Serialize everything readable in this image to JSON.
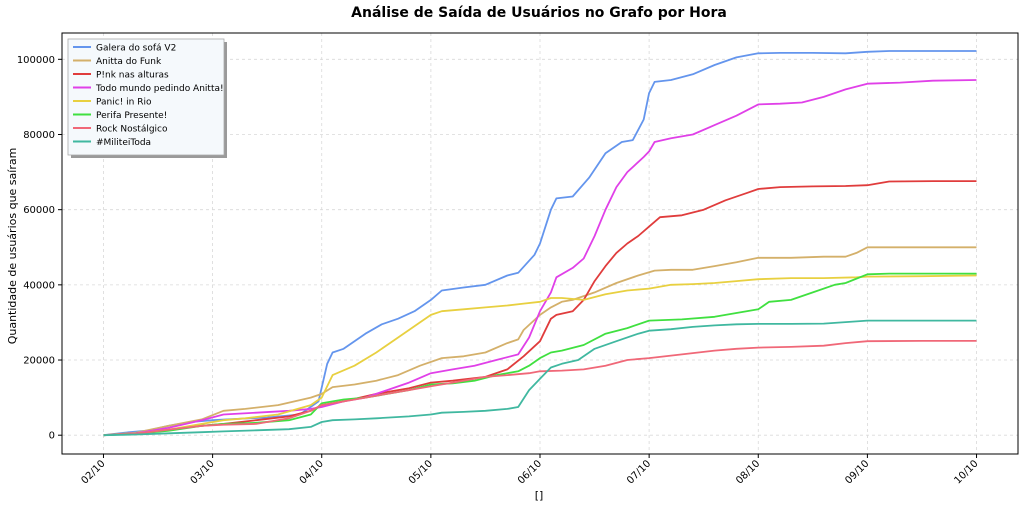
{
  "chart_data": {
    "type": "line",
    "title": "Análise de Saída de Usuários no Grafo por Hora",
    "xlabel": "[]",
    "ylabel": "Quantidade de usuários que saíram",
    "x_ticks": [
      "02/10",
      "03/10",
      "04/10",
      "05/10",
      "06/10",
      "07/10",
      "08/10",
      "09/10",
      "10/10"
    ],
    "xlim": [
      -0.38,
      8.38
    ],
    "ylim": [
      -5000,
      107000
    ],
    "y_ticks": [
      0,
      20000,
      40000,
      60000,
      80000,
      100000
    ],
    "grid": true,
    "legend_position": "top-left",
    "series": [
      {
        "name": "Galera do sofá V2",
        "color": "#6495ED",
        "x": [
          0,
          0.2,
          0.4,
          0.6,
          0.8,
          1.0,
          1.2,
          1.5,
          1.8,
          1.97,
          2.05,
          2.1,
          2.2,
          2.3,
          2.4,
          2.55,
          2.7,
          2.85,
          3.0,
          3.1,
          3.3,
          3.5,
          3.7,
          3.8,
          3.95,
          4.0,
          4.1,
          4.15,
          4.3,
          4.45,
          4.6,
          4.75,
          4.85,
          4.95,
          5.0,
          5.05,
          5.2,
          5.4,
          5.6,
          5.8,
          6.0,
          6.2,
          6.5,
          6.8,
          7.0,
          7.2,
          7.5,
          7.8,
          8.0
        ],
        "y": [
          0,
          700,
          1200,
          2500,
          3500,
          4000,
          4300,
          4700,
          5500,
          9000,
          19000,
          22000,
          23000,
          25000,
          27000,
          29500,
          31000,
          33000,
          36000,
          38500,
          39300,
          40000,
          42500,
          43200,
          48000,
          51000,
          60000,
          63000,
          63500,
          68500,
          75000,
          78000,
          78500,
          84000,
          91000,
          94000,
          94500,
          96000,
          98500,
          100500,
          101600,
          101700,
          101700,
          101600,
          102000,
          102200,
          102200,
          102200,
          102200
        ]
      },
      {
        "name": "Anitta do Funk",
        "color": "#D4B06A",
        "x": [
          0,
          0.3,
          0.6,
          0.9,
          1.1,
          1.3,
          1.6,
          1.9,
          2.0,
          2.1,
          2.3,
          2.5,
          2.7,
          2.9,
          3.1,
          3.3,
          3.5,
          3.7,
          3.8,
          3.85,
          4.0,
          4.1,
          4.2,
          4.3,
          4.5,
          4.7,
          4.9,
          5.05,
          5.2,
          5.4,
          5.6,
          5.8,
          6.0,
          6.3,
          6.6,
          6.8,
          6.9,
          7.0,
          7.5,
          8.0
        ],
        "y": [
          0,
          700,
          2500,
          4200,
          6500,
          7000,
          8000,
          10000,
          11000,
          12800,
          13500,
          14500,
          16000,
          18500,
          20500,
          21000,
          22000,
          24500,
          25500,
          28000,
          32000,
          34000,
          35500,
          36000,
          38000,
          40500,
          42500,
          43800,
          44000,
          44000,
          45000,
          46000,
          47200,
          47200,
          47500,
          47500,
          48500,
          50000,
          50000,
          50000
        ]
      },
      {
        "name": "P!nk nas alturas",
        "color": "#E03C3C",
        "x": [
          0,
          0.3,
          0.6,
          0.9,
          1.1,
          1.4,
          1.7,
          1.9,
          2.0,
          2.2,
          2.5,
          2.8,
          3.0,
          3.2,
          3.5,
          3.7,
          3.85,
          4.0,
          4.1,
          4.15,
          4.3,
          4.4,
          4.5,
          4.6,
          4.7,
          4.8,
          4.9,
          5.0,
          5.1,
          5.3,
          5.5,
          5.7,
          5.9,
          6.0,
          6.2,
          6.5,
          6.8,
          7.0,
          7.2,
          7.6,
          8.0
        ],
        "y": [
          0,
          500,
          1500,
          2500,
          3000,
          4000,
          5000,
          6500,
          8000,
          9000,
          11000,
          12500,
          14000,
          14500,
          15500,
          17500,
          21000,
          25000,
          31000,
          32000,
          33000,
          36000,
          41000,
          45000,
          48500,
          51000,
          53000,
          55500,
          58000,
          58500,
          60000,
          62500,
          64500,
          65500,
          66000,
          66200,
          66300,
          66500,
          67500,
          67600,
          67600
        ]
      },
      {
        "name": "Todo mundo pedindo Anitta!",
        "color": "#E040E8",
        "x": [
          0,
          0.3,
          0.6,
          0.9,
          1.1,
          1.4,
          1.7,
          1.9,
          2.0,
          2.2,
          2.4,
          2.6,
          2.8,
          3.0,
          3.2,
          3.4,
          3.6,
          3.8,
          3.9,
          4.0,
          4.1,
          4.15,
          4.3,
          4.4,
          4.5,
          4.6,
          4.7,
          4.8,
          4.95,
          5.0,
          5.05,
          5.2,
          5.4,
          5.6,
          5.8,
          6.0,
          6.2,
          6.4,
          6.6,
          6.8,
          7.0,
          7.3,
          7.6,
          8.0
        ],
        "y": [
          0,
          500,
          2000,
          4000,
          5500,
          6000,
          6500,
          7000,
          7500,
          9000,
          10000,
          12000,
          14000,
          16500,
          17500,
          18500,
          20000,
          21500,
          26000,
          33000,
          38000,
          42000,
          44500,
          47000,
          53000,
          60000,
          66000,
          70000,
          74000,
          75500,
          78000,
          79000,
          80000,
          82500,
          85000,
          88000,
          88200,
          88500,
          90000,
          92000,
          93500,
          93800,
          94300,
          94500
        ]
      },
      {
        "name": "Panic! in Rio",
        "color": "#E8D040",
        "x": [
          0,
          0.3,
          0.6,
          0.9,
          1.1,
          1.3,
          1.6,
          1.9,
          2.0,
          2.1,
          2.3,
          2.5,
          2.7,
          2.9,
          3.0,
          3.1,
          3.3,
          3.5,
          3.7,
          3.85,
          4.0,
          4.1,
          4.2,
          4.4,
          4.6,
          4.8,
          5.0,
          5.2,
          5.4,
          5.6,
          5.8,
          6.0,
          6.3,
          6.6,
          6.9,
          7.0,
          7.5,
          8.0
        ],
        "y": [
          0,
          400,
          1500,
          3000,
          4000,
          4500,
          5500,
          8000,
          10000,
          16000,
          18500,
          22000,
          26000,
          30000,
          32000,
          33000,
          33500,
          34000,
          34500,
          35000,
          35500,
          36500,
          36500,
          36000,
          37500,
          38500,
          39000,
          40000,
          40200,
          40500,
          41000,
          41500,
          41800,
          41800,
          42000,
          42200,
          42300,
          42500
        ]
      },
      {
        "name": "Perifa Presente!",
        "color": "#40E040",
        "x": [
          0,
          0.3,
          0.6,
          0.9,
          1.1,
          1.4,
          1.7,
          1.9,
          2.0,
          2.2,
          2.4,
          2.6,
          2.8,
          3.0,
          3.2,
          3.4,
          3.6,
          3.8,
          3.9,
          4.0,
          4.1,
          4.2,
          4.4,
          4.6,
          4.8,
          5.0,
          5.3,
          5.6,
          5.8,
          6.0,
          6.1,
          6.3,
          6.5,
          6.7,
          6.8,
          7.0,
          7.2,
          7.5,
          8.0
        ],
        "y": [
          0,
          400,
          1200,
          2500,
          3000,
          3300,
          4000,
          5500,
          8500,
          9500,
          10000,
          11000,
          12000,
          13500,
          13800,
          14500,
          16000,
          17000,
          18500,
          20500,
          22000,
          22500,
          24000,
          27000,
          28500,
          30500,
          30800,
          31500,
          32500,
          33500,
          35500,
          36000,
          38000,
          40000,
          40500,
          42800,
          43000,
          43000,
          43000
        ]
      },
      {
        "name": "Rock Nostálgico",
        "color": "#F06878",
        "x": [
          0,
          0.3,
          0.6,
          0.9,
          1.1,
          1.4,
          1.7,
          1.9,
          2.0,
          2.2,
          2.5,
          2.8,
          3.0,
          3.2,
          3.5,
          3.7,
          3.9,
          4.0,
          4.2,
          4.4,
          4.6,
          4.8,
          5.0,
          5.3,
          5.6,
          5.8,
          6.0,
          6.3,
          6.6,
          6.8,
          7.0,
          7.5,
          8.0
        ],
        "y": [
          0,
          400,
          1500,
          2500,
          2800,
          3000,
          4500,
          6500,
          8000,
          9000,
          10500,
          12000,
          13000,
          14000,
          15500,
          16000,
          16500,
          17000,
          17200,
          17500,
          18500,
          20000,
          20500,
          21500,
          22500,
          23000,
          23300,
          23500,
          23800,
          24500,
          25000,
          25100,
          25100
        ]
      },
      {
        "name": "#MiliteiToda",
        "color": "#40B8A0",
        "x": [
          0,
          0.3,
          0.6,
          0.9,
          1.1,
          1.4,
          1.7,
          1.9,
          2.0,
          2.1,
          2.3,
          2.5,
          2.8,
          3.0,
          3.1,
          3.3,
          3.5,
          3.7,
          3.8,
          3.9,
          4.0,
          4.1,
          4.2,
          4.35,
          4.5,
          4.7,
          4.9,
          5.0,
          5.2,
          5.4,
          5.6,
          5.8,
          6.0,
          6.3,
          6.6,
          7.0,
          7.5,
          8.0
        ],
        "y": [
          0,
          200,
          500,
          800,
          1000,
          1300,
          1600,
          2200,
          3500,
          4000,
          4200,
          4500,
          5000,
          5500,
          6000,
          6200,
          6500,
          7000,
          7500,
          12000,
          15000,
          18000,
          19000,
          20000,
          23000,
          25000,
          27000,
          27800,
          28200,
          28800,
          29200,
          29500,
          29600,
          29600,
          29700,
          30500,
          30500,
          30500
        ]
      }
    ]
  }
}
